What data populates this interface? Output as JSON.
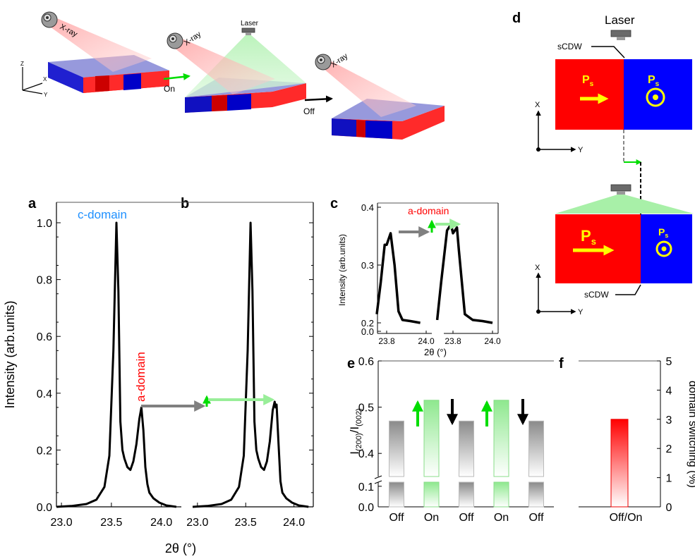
{
  "panel_labels": {
    "a": "a",
    "b": "b",
    "c": "c",
    "d": "d",
    "e": "e",
    "f": "f"
  },
  "schematic": {
    "xray_label": "X-ray",
    "laser_label": "Laser",
    "on_label": "On",
    "off_label": "Off",
    "axes": {
      "z": "Z",
      "x": "X",
      "y": "Y"
    }
  },
  "panel_d": {
    "laser_label": "Laser",
    "scdw_label": "sCDW",
    "ps_label": "P",
    "ps_sub": "s",
    "axis_x": "X",
    "axis_y": "Y",
    "colors": {
      "red_domain": "#ff0000",
      "blue_domain": "#0000ff",
      "polarization": "#ffff00"
    }
  },
  "chart_data": [
    {
      "id": "a",
      "type": "line",
      "title": "",
      "xlabel": "2θ (°)",
      "ylabel": "Intensity (arb.units)",
      "xlim": [
        22.95,
        24.2
      ],
      "ylim": [
        0,
        1.05
      ],
      "xticks": [
        "23.0",
        "23.5",
        "24.0"
      ],
      "yticks": [
        "0.0",
        "0.2",
        "0.4",
        "0.6",
        "0.8",
        "1.0"
      ],
      "annotations": [
        "c-domain",
        "a-domain"
      ],
      "series": [
        {
          "x": [
            22.95,
            23.1,
            23.25,
            23.35,
            23.43,
            23.48,
            23.52,
            23.55,
            23.57,
            23.59,
            23.61,
            23.63,
            23.66,
            23.69,
            23.72,
            23.75,
            23.78,
            23.8,
            23.82,
            23.84,
            23.86,
            23.88,
            23.92,
            23.98,
            24.05,
            24.15
          ],
          "y": [
            0.0,
            0.003,
            0.01,
            0.025,
            0.07,
            0.18,
            0.55,
            1.0,
            0.76,
            0.3,
            0.2,
            0.17,
            0.14,
            0.13,
            0.16,
            0.22,
            0.31,
            0.35,
            0.27,
            0.14,
            0.08,
            0.05,
            0.03,
            0.015,
            0.005,
            0.0
          ]
        }
      ]
    },
    {
      "id": "b",
      "type": "line",
      "xlim": [
        22.95,
        24.2
      ],
      "ylim": [
        0,
        1.05
      ],
      "xticks": [
        "23.0",
        "23.5",
        "24.0"
      ],
      "series": [
        {
          "x": [
            22.95,
            23.1,
            23.25,
            23.35,
            23.43,
            23.48,
            23.52,
            23.55,
            23.57,
            23.59,
            23.61,
            23.63,
            23.66,
            23.69,
            23.72,
            23.75,
            23.78,
            23.8,
            23.81,
            23.82,
            23.84,
            23.86,
            23.88,
            23.92,
            23.98,
            24.05,
            24.15
          ],
          "y": [
            0.0,
            0.003,
            0.01,
            0.025,
            0.07,
            0.18,
            0.55,
            1.0,
            0.76,
            0.3,
            0.2,
            0.17,
            0.14,
            0.13,
            0.16,
            0.23,
            0.34,
            0.37,
            0.35,
            0.36,
            0.22,
            0.09,
            0.05,
            0.03,
            0.015,
            0.005,
            0.0
          ]
        }
      ]
    },
    {
      "id": "c",
      "type": "line",
      "xlabel": "2θ (°)",
      "ylabel": "Intensity (arb.units)",
      "annotation": "a-domain",
      "yticks": [
        "0.0",
        "0.2",
        "0.3",
        "0.4"
      ],
      "xticks_left": [
        "23.8",
        "24.0"
      ],
      "xticks_right": [
        "23.8",
        "24.0"
      ],
      "series": [
        {
          "name": "Off",
          "x": [
            23.75,
            23.77,
            23.79,
            23.8,
            23.81,
            23.82,
            23.84,
            23.86,
            23.88,
            23.92,
            23.97
          ],
          "y": [
            0.215,
            0.27,
            0.335,
            0.335,
            0.345,
            0.355,
            0.3,
            0.22,
            0.205,
            0.203,
            0.2
          ]
        },
        {
          "name": "On",
          "x": [
            23.72,
            23.74,
            23.77,
            23.79,
            23.8,
            23.81,
            23.82,
            23.83,
            23.86,
            23.9,
            23.95,
            24.0
          ],
          "y": [
            0.205,
            0.27,
            0.36,
            0.37,
            0.355,
            0.36,
            0.365,
            0.325,
            0.215,
            0.205,
            0.203,
            0.2
          ]
        }
      ]
    },
    {
      "id": "e",
      "type": "bar",
      "ylabel": "I(200)/I(002)",
      "categories": [
        "Off",
        "On",
        "Off",
        "On",
        "Off"
      ],
      "values": [
        0.47,
        0.515,
        0.47,
        0.515,
        0.47
      ],
      "yticks": [
        "0.0",
        "0.1",
        "0.4",
        "0.5",
        "0.6"
      ],
      "colors": [
        "#888888",
        "#55dd55",
        "#888888",
        "#55dd55",
        "#888888"
      ]
    },
    {
      "id": "f",
      "type": "bar",
      "ylabel": "domain switching (%)",
      "categories": [
        "Off/On"
      ],
      "values": [
        3.0
      ],
      "ylim": [
        0,
        5
      ],
      "yticks": [
        "0",
        "1",
        "2",
        "3",
        "4",
        "5"
      ],
      "color": "#ff0000"
    }
  ]
}
